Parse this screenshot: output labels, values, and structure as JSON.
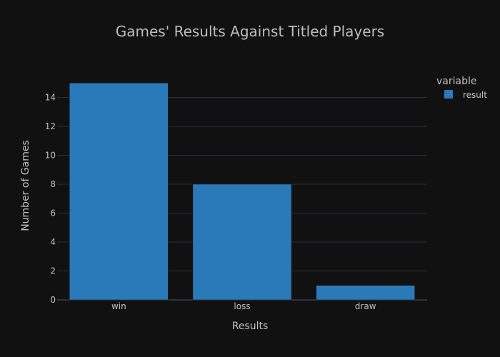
{
  "chart_data": {
    "type": "bar",
    "title": "Games' Results Against Titled Players",
    "xlabel": "Results",
    "ylabel": "Number of Games",
    "categories": [
      "win",
      "loss",
      "draw"
    ],
    "series": [
      {
        "name": "result",
        "values": [
          15,
          8,
          1
        ],
        "color": "#2a7ab9"
      }
    ],
    "ylim": [
      0,
      15.8
    ],
    "yticks": [
      0,
      2,
      4,
      6,
      8,
      10,
      12,
      14
    ],
    "grid": true,
    "legend": {
      "title": "variable",
      "position": "top-right"
    },
    "colors": {
      "background": "#111111",
      "bar": "#2a7ab9",
      "grid": "#2a2f3a"
    }
  }
}
